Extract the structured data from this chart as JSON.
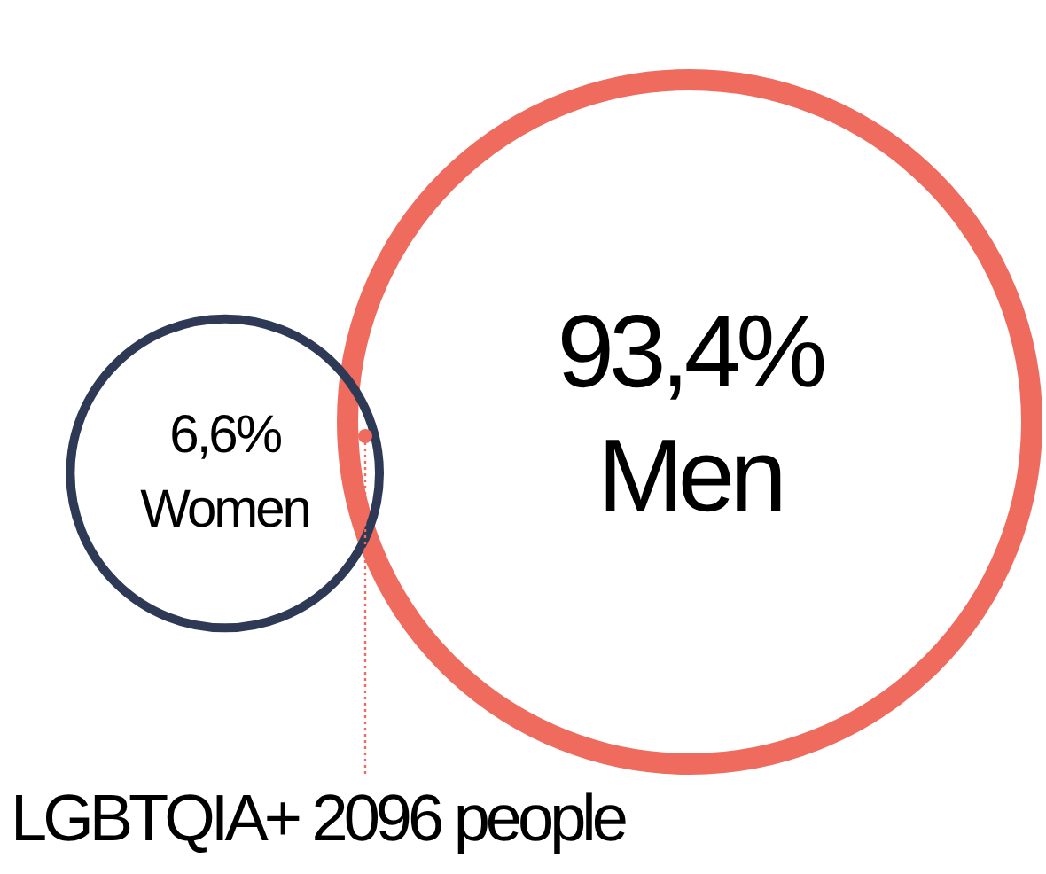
{
  "chart_data": {
    "type": "other",
    "categories": [
      "Men",
      "Women",
      "LGBTQIA+"
    ],
    "values": [
      93.4,
      6.6,
      null
    ],
    "value_labels": [
      "93,4%",
      "6,6%",
      "2096 people"
    ],
    "colors": [
      "#ee6b5e",
      "#2e3a55",
      "#ee6b5e"
    ]
  }
}
